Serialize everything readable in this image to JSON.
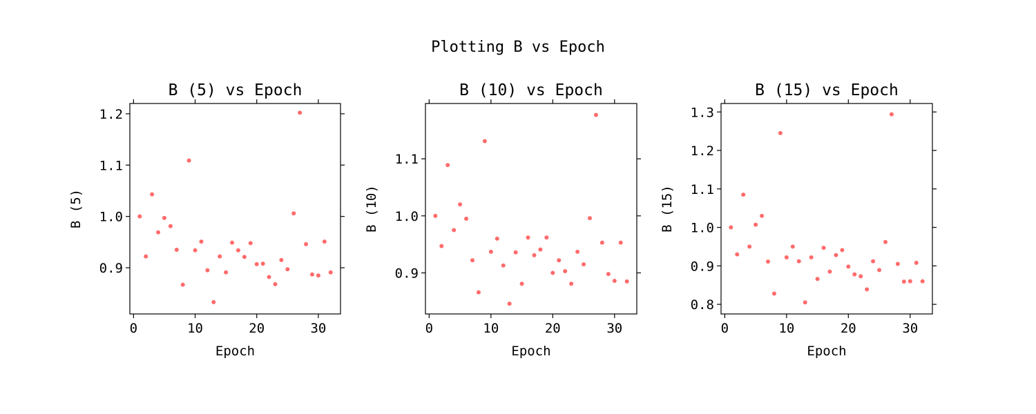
{
  "figure": {
    "title": "Plotting B vs Epoch",
    "marker_color": "#ff6b6b"
  },
  "chart_data": [
    {
      "type": "scatter",
      "title": "B (5) vs Epoch",
      "xlabel": "Epoch",
      "ylabel": "B (5)",
      "xlim": [
        -0.6,
        33.6
      ],
      "ylim": [
        0.81,
        1.22
      ],
      "xticks": [
        0,
        10,
        20,
        30
      ],
      "yticks": [
        0.9,
        1.0,
        1.1,
        1.2
      ],
      "ytick_labels": [
        "0.9",
        "1.0",
        "1.1",
        "1.2"
      ],
      "grid": false,
      "x": [
        1,
        2,
        3,
        4,
        5,
        6,
        7,
        8,
        9,
        10,
        11,
        12,
        13,
        14,
        15,
        16,
        17,
        18,
        19,
        20,
        21,
        22,
        23,
        24,
        25,
        26,
        27,
        28,
        29,
        30,
        31,
        32
      ],
      "y": [
        1.0,
        0.922,
        1.043,
        0.969,
        0.997,
        0.981,
        0.935,
        0.867,
        1.109,
        0.934,
        0.951,
        0.895,
        0.833,
        0.922,
        0.891,
        0.949,
        0.934,
        0.921,
        0.948,
        0.907,
        0.908,
        0.882,
        0.868,
        0.915,
        0.897,
        1.006,
        1.202,
        0.946,
        0.887,
        0.885,
        0.951,
        0.891
      ]
    },
    {
      "type": "scatter",
      "title": "B (10) vs Epoch",
      "xlabel": "Epoch",
      "ylabel": "B (10)",
      "xlim": [
        -0.6,
        33.6
      ],
      "ylim": [
        0.828,
        1.197
      ],
      "xticks": [
        0,
        10,
        20,
        30
      ],
      "yticks": [
        0.9,
        1.0,
        1.1
      ],
      "ytick_labels": [
        "0.9",
        "1.0",
        "1.1"
      ],
      "grid": false,
      "x": [
        1,
        2,
        3,
        4,
        5,
        6,
        7,
        8,
        9,
        10,
        11,
        12,
        13,
        14,
        15,
        16,
        17,
        18,
        19,
        20,
        21,
        22,
        23,
        24,
        25,
        26,
        27,
        28,
        29,
        30,
        31,
        32
      ],
      "y": [
        1.0,
        0.947,
        1.089,
        0.975,
        1.02,
        0.995,
        0.922,
        0.866,
        1.131,
        0.937,
        0.96,
        0.913,
        0.846,
        0.936,
        0.881,
        0.962,
        0.931,
        0.941,
        0.962,
        0.9,
        0.922,
        0.903,
        0.881,
        0.937,
        0.915,
        0.996,
        1.177,
        0.953,
        0.898,
        0.886,
        0.953,
        0.885
      ]
    },
    {
      "type": "scatter",
      "title": "B (15) vs Epoch",
      "xlabel": "Epoch",
      "ylabel": "B (15)",
      "xlim": [
        -0.6,
        33.6
      ],
      "ylim": [
        0.775,
        1.322
      ],
      "xticks": [
        0,
        10,
        20,
        30
      ],
      "yticks": [
        0.8,
        0.9,
        1.0,
        1.1,
        1.2,
        1.3
      ],
      "ytick_labels": [
        "0.8",
        "0.9",
        "1.0",
        "1.1",
        "1.2",
        "1.3"
      ],
      "grid": false,
      "x": [
        1,
        2,
        3,
        4,
        5,
        6,
        7,
        8,
        9,
        10,
        11,
        12,
        13,
        14,
        15,
        16,
        17,
        18,
        19,
        20,
        21,
        22,
        23,
        24,
        25,
        26,
        27,
        28,
        29,
        30,
        31,
        32
      ],
      "y": [
        1.0,
        0.93,
        1.085,
        0.95,
        1.007,
        1.03,
        0.911,
        0.828,
        1.245,
        0.922,
        0.95,
        0.912,
        0.805,
        0.922,
        0.866,
        0.947,
        0.885,
        0.928,
        0.941,
        0.898,
        0.878,
        0.873,
        0.839,
        0.912,
        0.889,
        0.962,
        1.294,
        0.905,
        0.859,
        0.86,
        0.908,
        0.86
      ]
    }
  ]
}
